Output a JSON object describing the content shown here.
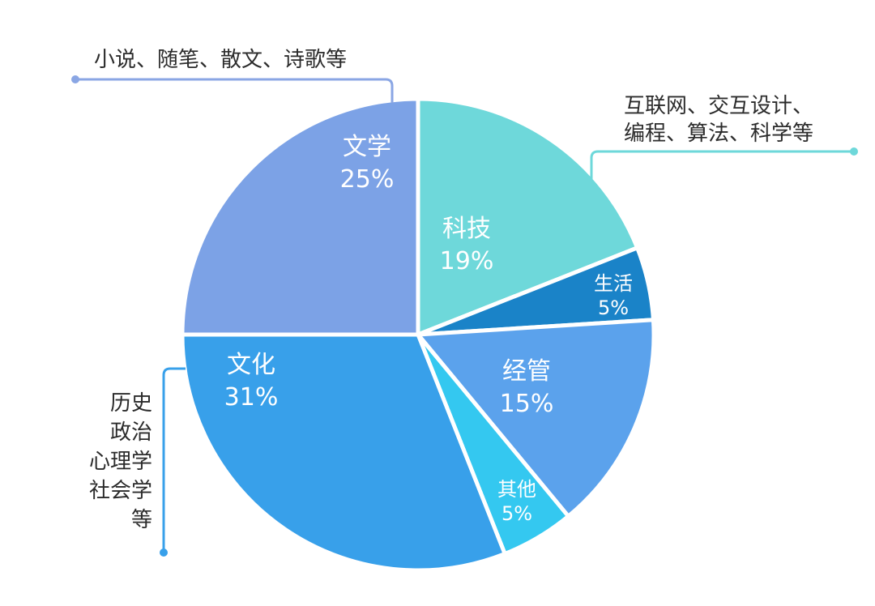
{
  "chart_data": {
    "type": "pie",
    "title": "",
    "start_angle_deg": 0,
    "direction": "clockwise",
    "slices": [
      {
        "name": "科技",
        "value": 19,
        "pct_label": "19%",
        "color": "#6ed8da"
      },
      {
        "name": "生活",
        "value": 5,
        "pct_label": "5%",
        "color": "#1a83c8"
      },
      {
        "name": "经管",
        "value": 15,
        "pct_label": "15%",
        "color": "#5ba2ec"
      },
      {
        "name": "其他",
        "value": 5,
        "pct_label": "5%",
        "color": "#34c8f0"
      },
      {
        "name": "文化",
        "value": 31,
        "pct_label": "31%",
        "color": "#38a0ea"
      },
      {
        "name": "文学",
        "value": 25,
        "pct_label": "25%",
        "color": "#7ca2e6"
      }
    ],
    "annotations": [
      {
        "target": "文学",
        "lines": [
          "小说、随笔、散文、诗歌等"
        ],
        "color": "#8aa6e4"
      },
      {
        "target": "科技",
        "lines": [
          "互联网、交互设计、",
          "编程、算法、科学等"
        ],
        "color": "#6ed8da"
      },
      {
        "target": "文化",
        "lines": [
          "历史",
          "政治",
          "心理学",
          "社会学",
          "等"
        ],
        "color": "#38a0ea"
      }
    ]
  }
}
